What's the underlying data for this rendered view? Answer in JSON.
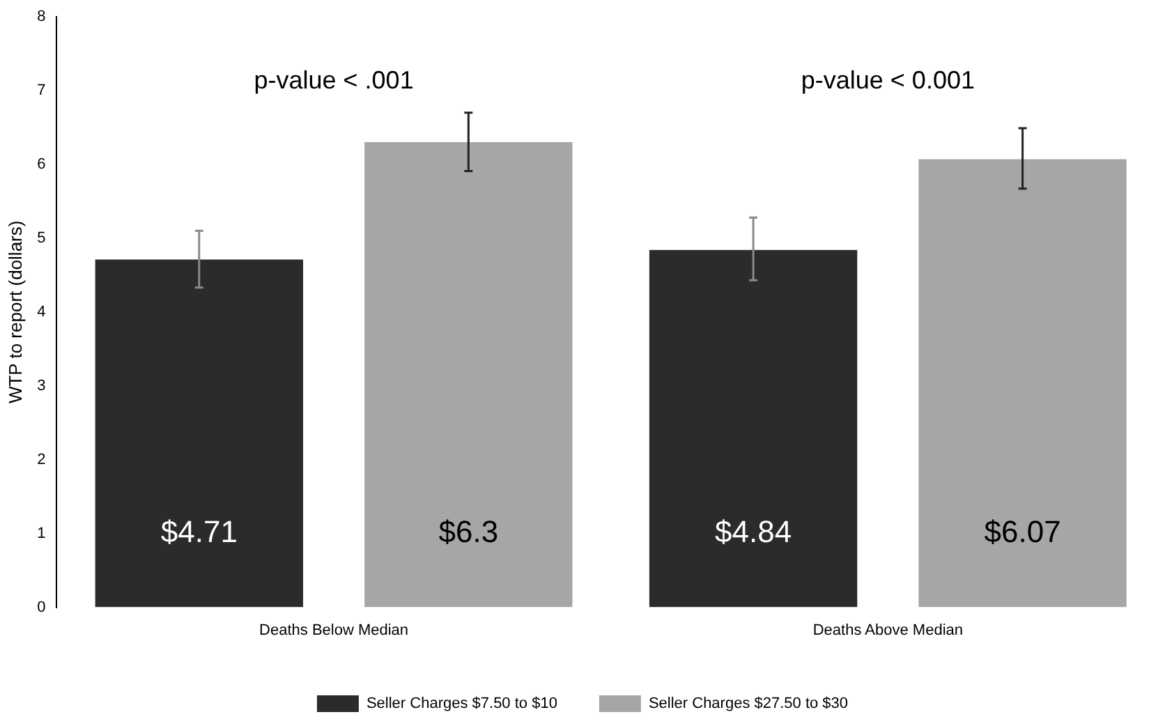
{
  "chart_data": {
    "type": "bar",
    "ylabel": "WTP to report (dollars)",
    "categories": [
      "Deaths Below Median",
      "Deaths Above Median"
    ],
    "series": [
      {
        "name": "Seller Charges $7.50 to $10",
        "color": "#2b2b2b",
        "values": [
          4.71,
          4.84
        ],
        "errors": [
          [
            4.33,
            5.1
          ],
          [
            4.43,
            5.28
          ]
        ],
        "value_labels": [
          "$4.71",
          "$4.84"
        ]
      },
      {
        "name": "Seller Charges $27.50 to $30",
        "color": "#a6a6a6",
        "values": [
          6.3,
          6.07
        ],
        "errors": [
          [
            5.91,
            6.7
          ],
          [
            5.67,
            6.49
          ]
        ],
        "value_labels": [
          "$6.3",
          "$6.07"
        ]
      }
    ],
    "ylim": [
      0,
      8
    ],
    "yticks": [
      0,
      1,
      2,
      3,
      4,
      5,
      6,
      7,
      8
    ],
    "grid": false,
    "legend": "bottom",
    "annotations": [
      "p-value < .001",
      "p-value < 0.001"
    ]
  }
}
